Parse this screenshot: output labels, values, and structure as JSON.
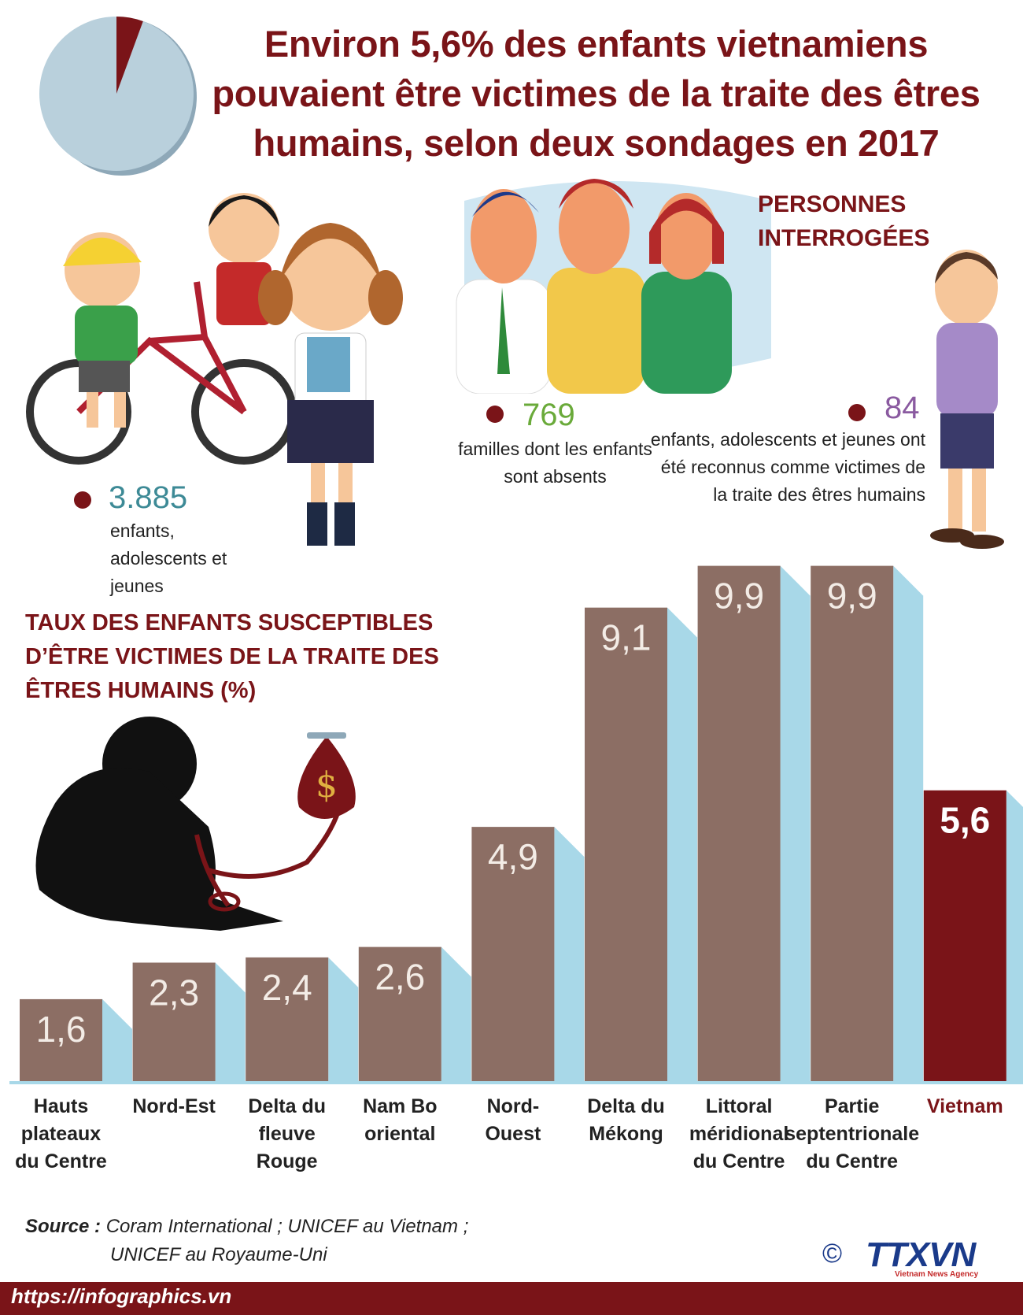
{
  "header": {
    "title": "Environ 5,6% des enfants vietnamiens pouvaient être victimes de la traite des êtres humains, selon deux sondages en 2017"
  },
  "respondents": {
    "title": "PERSONNES INTERROGÉES",
    "stats": [
      {
        "value": "3.885",
        "label": "enfants, adolescents et jeunes",
        "color": "#3d8a96"
      },
      {
        "value": "769",
        "label": "familles dont les enfants sont absents",
        "color": "#6aaa3a"
      },
      {
        "value": "84",
        "label": "enfants, adolescents et jeunes ont été reconnus comme victimes de la traite des êtres humains",
        "color": "#8a5aa0"
      }
    ]
  },
  "chart_data": {
    "type": "bar",
    "title": "TAUX DES ENFANTS SUSCEPTIBLES D’ÊTRE VICTIMES DE LA TRAITE DES ÊTRES HUMAINS (%)",
    "categories": [
      "Hauts plateaux du Centre",
      "Nord-Est",
      "Delta du fleuve Rouge",
      "Nam Bo oriental",
      "Nord-Ouest",
      "Delta du Mékong",
      "Littoral méridional du Centre",
      "Partie septentrionale du Centre",
      "Vietnam"
    ],
    "values": [
      1.6,
      2.3,
      2.4,
      2.6,
      4.9,
      9.1,
      9.9,
      9.9,
      5.6
    ],
    "value_labels": [
      "1,6",
      "2,3",
      "2,4",
      "2,6",
      "4,9",
      "9,1",
      "9,9",
      "9,9",
      "5,6"
    ],
    "ylim": [
      0,
      10
    ],
    "colors": {
      "region": "#8c6e64",
      "national": "#7a1418",
      "shadow": "#a8d8e8"
    },
    "grid": false,
    "legend": "none"
  },
  "pie": {
    "value": 5.6,
    "colors": {
      "main": "#b9d0dc",
      "slice": "#7a1418",
      "side": "#8ea8b8"
    }
  },
  "footer": {
    "source_label": "Source :",
    "source_line1": "Coram International ; UNICEF au Vietnam ;",
    "source_line2": "UNICEF au Royaume-Uni",
    "url": "https://infographics.vn",
    "logo": "TTXVN",
    "logo_sub": "Vietnam News Agency",
    "copyright": "©"
  }
}
